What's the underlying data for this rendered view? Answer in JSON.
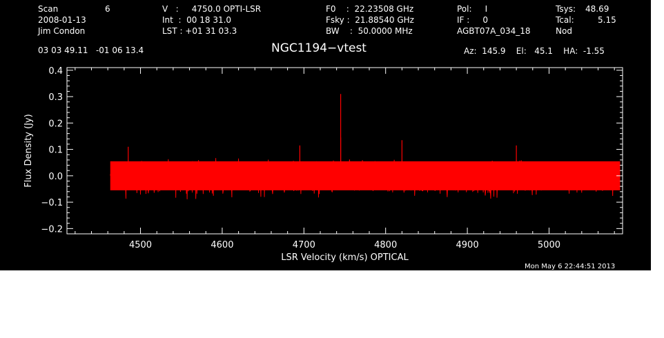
{
  "header": {
    "col1": {
      "scan_label": "Scan",
      "scan_value": "6",
      "date": "2008-01-13",
      "observer": "Jim Condon"
    },
    "col2": {
      "v_line": "V   :     4750.0 OPTI-LSR",
      "int_line": "Int  :  00 18 31.0",
      "lst_line": "LST : +01 31 03.3"
    },
    "col3": {
      "f0_line": "F0    :  22.23508 GHz",
      "fsky_line": "Fsky :  21.88540 GHz",
      "bw_line": "BW    :  50.0000 MHz"
    },
    "col4": {
      "pol_line": "Pol:     I",
      "if_line": "IF :     0",
      "project": "AGBT07A_034_18"
    },
    "col5": {
      "tsys_label": "Tsys:",
      "tsys_value": "48.69",
      "tcal_label": "Tcal:",
      "tcal_value": "5.15",
      "mode": "Nod"
    },
    "coords": "03 03 49.11   -01 06 13.4",
    "title": "NGC1194−vtest",
    "azelha": "Az:  145.9    El:   45.1    HA:  -1.55",
    "timestamp": "Mon May  6 22:44:51 2013"
  },
  "chart_data": {
    "type": "line",
    "xlabel": "LSR Velocity (km/s) OPTICAL",
    "ylabel": "Flux Density (Jy)",
    "xlim": [
      4410,
      5090
    ],
    "ylim": [
      -0.22,
      0.41
    ],
    "x_ticks": [
      4500,
      4600,
      4700,
      4800,
      4900,
      5000
    ],
    "x_tick_labels": [
      "4500",
      "4600",
      "4700",
      "4800",
      "4900",
      "5000"
    ],
    "y_ticks": [
      -0.2,
      -0.1,
      0.0,
      0.1,
      0.2,
      0.3,
      0.4
    ],
    "y_tick_labels": [
      "−0.2",
      "−0.1",
      "0.0",
      "0.1",
      "0.2",
      "0.3",
      "0.4"
    ],
    "series": [
      {
        "color": "#ff0000",
        "x_range": [
          4463,
          5087
        ],
        "noise_envelope": [
          -0.1,
          0.08
        ],
        "spikes": [
          {
            "x": 4745,
            "y": 0.31
          },
          {
            "x": 4745,
            "y": 0.145
          },
          {
            "x": 4820,
            "y": 0.135
          },
          {
            "x": 4960,
            "y": 0.115
          },
          {
            "x": 4695,
            "y": 0.115
          },
          {
            "x": 4485,
            "y": 0.11
          }
        ]
      }
    ],
    "grid": false,
    "background": "#000000",
    "axis_color": "#ffffff"
  }
}
